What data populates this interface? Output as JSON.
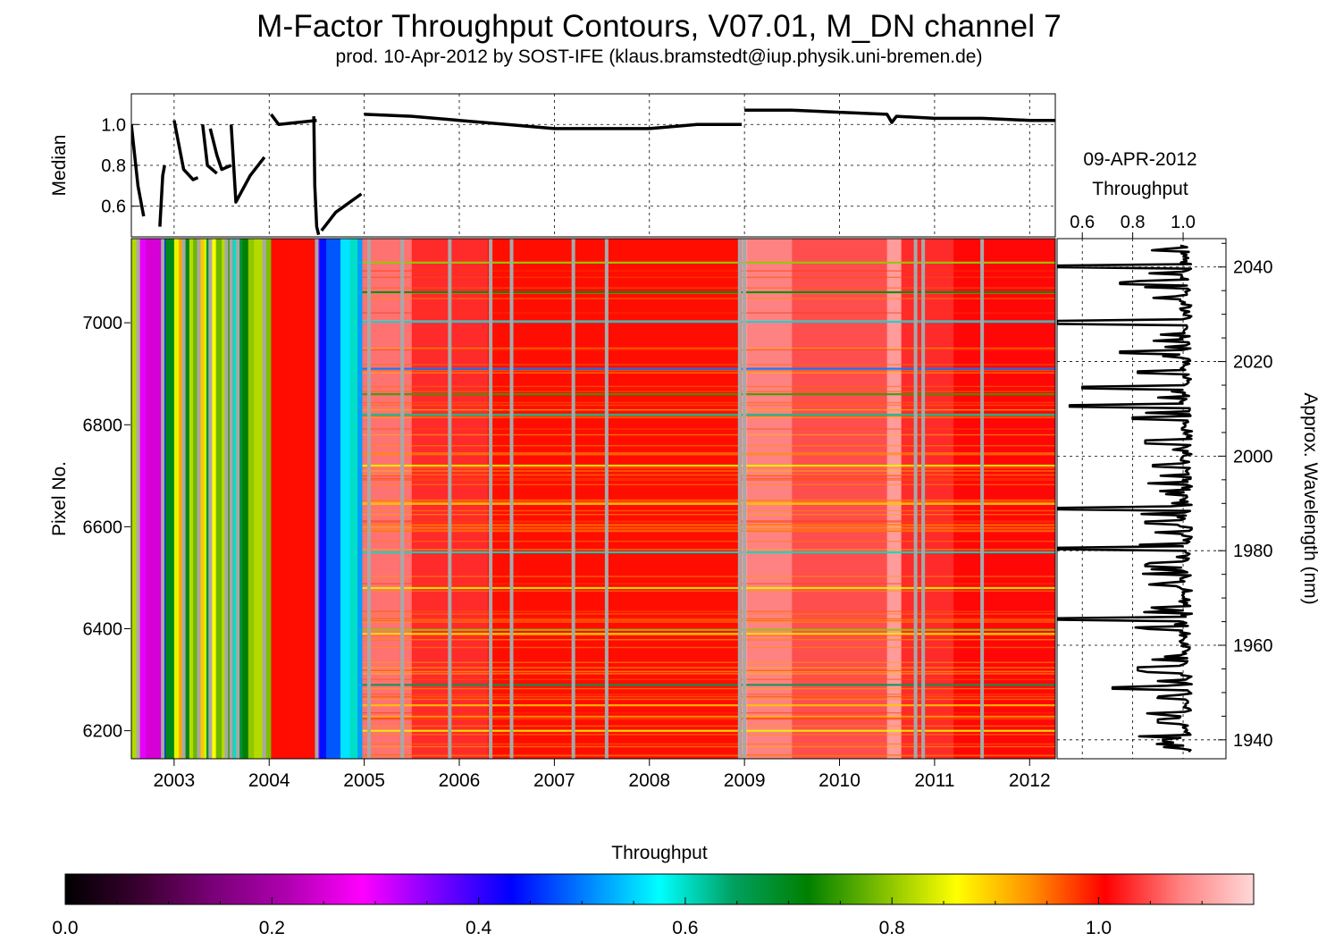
{
  "title": "M-Factor Throughput Contours, V07.01, M_DN channel 7",
  "subtitle": "prod. 10-Apr-2012 by SOST-IFE (klaus.bramstedt@iup.physik.uni-bremen.de)",
  "colors": {
    "background": "#ffffff",
    "median_line": "#000000",
    "gap_gray": "#a8a8a8",
    "colorbar_stops": [
      "#000000",
      "#3a0030",
      "#7a0078",
      "#b000b0",
      "#ff00ff",
      "#7a00ff",
      "#0000ff",
      "#0080ff",
      "#00ffff",
      "#00a060",
      "#008000",
      "#80c000",
      "#ffff00",
      "#ff9000",
      "#ff0000",
      "#ff8080",
      "#ffd8d8"
    ]
  },
  "chart_data": [
    {
      "type": "line",
      "name": "median-panel",
      "ylabel": "Median",
      "xlim": [
        2002.55,
        2012.27
      ],
      "ylim": [
        0.45,
        1.15
      ],
      "yticks": [
        0.6,
        0.8,
        1.0
      ],
      "ytick_labels": [
        "0.6",
        "0.8",
        "1.0"
      ],
      "grid": true,
      "series": [
        {
          "x": [
            2005.0,
            2005.5,
            2006.0,
            2006.5,
            2007.0,
            2007.5,
            2008.0,
            2008.5,
            2008.97
          ],
          "y": [
            1.05,
            1.04,
            1.02,
            1.0,
            0.98,
            0.98,
            0.98,
            1.0,
            1.0
          ]
        },
        {
          "x": [
            2009.0,
            2009.5,
            2010.0,
            2010.5,
            2010.55,
            2010.6,
            2011.0,
            2011.5,
            2012.0,
            2012.27
          ],
          "y": [
            1.07,
            1.07,
            1.06,
            1.05,
            1.01,
            1.04,
            1.03,
            1.03,
            1.02,
            1.02
          ]
        },
        {
          "x": [
            2004.02,
            2004.1,
            2004.3,
            2004.5
          ],
          "y": [
            1.05,
            1.0,
            1.01,
            1.02
          ]
        },
        {
          "x": [
            2004.55,
            2004.7,
            2004.85,
            2004.97
          ],
          "y": [
            0.48,
            0.57,
            0.62,
            0.66
          ]
        },
        {
          "x": [
            2003.6,
            2003.65,
            2003.8,
            2003.95
          ],
          "y": [
            1.0,
            0.62,
            0.75,
            0.84
          ]
        },
        {
          "x": [
            2003.0,
            2003.05,
            2003.1,
            2003.2,
            2003.25
          ],
          "y": [
            1.02,
            0.9,
            0.78,
            0.73,
            0.74
          ]
        },
        {
          "x": [
            2003.3,
            2003.35,
            2003.45
          ],
          "y": [
            1.0,
            0.8,
            0.76
          ]
        },
        {
          "x": [
            2003.38,
            2003.45,
            2003.5,
            2003.6
          ],
          "y": [
            0.98,
            0.85,
            0.78,
            0.8
          ]
        },
        {
          "x": [
            2002.55,
            2002.62,
            2002.68
          ],
          "y": [
            1.0,
            0.7,
            0.55
          ]
        },
        {
          "x": [
            2002.85,
            2002.88,
            2002.9
          ],
          "y": [
            0.5,
            0.75,
            0.8
          ]
        },
        {
          "x": [
            2004.47,
            2004.48,
            2004.5,
            2004.52
          ],
          "y": [
            1.04,
            0.7,
            0.5,
            0.46
          ]
        }
      ]
    },
    {
      "type": "heatmap",
      "name": "throughput-contours",
      "xlabel": "",
      "ylabel": "Pixel No.",
      "xlim": [
        2002.55,
        2012.27
      ],
      "ylim": [
        6145,
        7165
      ],
      "xticks": [
        2003,
        2004,
        2005,
        2006,
        2007,
        2008,
        2009,
        2010,
        2011,
        2012
      ],
      "xtick_labels": [
        "2003",
        "2004",
        "2005",
        "2006",
        "2007",
        "2008",
        "2009",
        "2010",
        "2011",
        "2012"
      ],
      "yticks": [
        6200,
        6400,
        6600,
        6800,
        7000
      ],
      "ytick_labels": [
        "6200",
        "6400",
        "6600",
        "6800",
        "7000"
      ],
      "bands": [
        {
          "x0": 2002.55,
          "x1": 2002.62,
          "value": 0.82
        },
        {
          "x0": 2002.62,
          "x1": 2002.64,
          "value": 0.9
        },
        {
          "x0": 2002.64,
          "x1": 2002.7,
          "value": 0.3
        },
        {
          "x0": 2002.7,
          "x1": 2002.87,
          "value": 0.25
        },
        {
          "x0": 2002.87,
          "x1": 2002.91,
          "value": 0.45
        },
        {
          "x0": 2002.91,
          "x1": 2003.0,
          "value": 0.7
        },
        {
          "x0": 2003.0,
          "x1": 2003.05,
          "value": 0.85
        },
        {
          "x0": 2003.05,
          "x1": 2003.09,
          "value": 0.92
        },
        {
          "x0": 2003.09,
          "x1": 2003.12,
          "value": 0.8
        },
        {
          "x0": 2003.12,
          "x1": 2003.16,
          "value": 0.7
        },
        {
          "x0": 2003.16,
          "x1": 2003.2,
          "value": 0.82
        },
        {
          "x0": 2003.2,
          "x1": 2003.27,
          "value": 0.78
        },
        {
          "x0": 2003.27,
          "x1": 2003.31,
          "value": 0.9
        },
        {
          "x0": 2003.31,
          "x1": 2003.34,
          "value": 0.84
        },
        {
          "x0": 2003.34,
          "x1": 2003.39,
          "value": 0.68
        },
        {
          "x0": 2003.39,
          "x1": 2003.44,
          "value": 0.86
        },
        {
          "x0": 2003.44,
          "x1": 2003.5,
          "value": 0.78
        },
        {
          "x0": 2003.5,
          "x1": 2003.55,
          "value": 0.82
        },
        {
          "x0": 2003.55,
          "x1": 2003.62,
          "value": 0.74
        },
        {
          "x0": 2003.62,
          "x1": 2003.66,
          "value": 0.6
        },
        {
          "x0": 2003.66,
          "x1": 2003.72,
          "value": 0.68
        },
        {
          "x0": 2003.72,
          "x1": 2003.78,
          "value": 0.72
        },
        {
          "x0": 2003.78,
          "x1": 2003.84,
          "value": 0.8
        },
        {
          "x0": 2003.84,
          "x1": 2003.93,
          "value": 0.82
        },
        {
          "x0": 2003.93,
          "x1": 2004.02,
          "value": 0.79
        },
        {
          "x0": 2004.02,
          "x1": 2004.5,
          "value": 1.0
        },
        {
          "x0": 2004.5,
          "x1": 2004.53,
          "value": 0.35
        },
        {
          "x0": 2004.53,
          "x1": 2004.6,
          "value": 0.44
        },
        {
          "x0": 2004.6,
          "x1": 2004.75,
          "value": 0.48
        },
        {
          "x0": 2004.75,
          "x1": 2004.85,
          "value": 0.56
        },
        {
          "x0": 2004.85,
          "x1": 2004.93,
          "value": 0.6
        },
        {
          "x0": 2004.93,
          "x1": 2004.98,
          "value": 0.52
        },
        {
          "x0": 2004.98,
          "x1": 2005.5,
          "value": 1.07
        },
        {
          "x0": 2005.5,
          "x1": 2006.3,
          "value": 1.03
        },
        {
          "x0": 2006.3,
          "x1": 2008.97,
          "value": 1.0
        },
        {
          "x0": 2008.97,
          "x1": 2009.03,
          "value": 1.1
        },
        {
          "x0": 2009.03,
          "x1": 2009.5,
          "value": 1.08
        },
        {
          "x0": 2009.5,
          "x1": 2010.5,
          "value": 1.05
        },
        {
          "x0": 2010.5,
          "x1": 2010.65,
          "value": 1.1
        },
        {
          "x0": 2010.65,
          "x1": 2011.2,
          "value": 1.03
        },
        {
          "x0": 2011.2,
          "x1": 2012.27,
          "value": 1.01
        }
      ],
      "gaps": [
        2002.62,
        2002.88,
        2003.1,
        2003.26,
        2003.38,
        2003.55,
        2003.6,
        2003.67,
        2003.95,
        2004.5,
        2005.05,
        2005.4,
        2005.9,
        2006.33,
        2006.55,
        2007.2,
        2007.55,
        2008.95,
        2009.0,
        2010.8,
        2010.88,
        2011.5
      ],
      "rows": [
        {
          "pixel": 7118,
          "value": 0.8
        },
        {
          "pixel": 7060,
          "value": 0.7
        },
        {
          "pixel": 7002,
          "value": 0.55
        },
        {
          "pixel": 6910,
          "value": 0.5
        },
        {
          "pixel": 6860,
          "value": 0.75
        },
        {
          "pixel": 6820,
          "value": 0.62
        },
        {
          "pixel": 6720,
          "value": 0.85
        },
        {
          "pixel": 6645,
          "value": 0.9
        },
        {
          "pixel": 6550,
          "value": 0.6
        },
        {
          "pixel": 6480,
          "value": 0.85
        },
        {
          "pixel": 6398,
          "value": 0.8
        },
        {
          "pixel": 6390,
          "value": 0.88
        },
        {
          "pixel": 6290,
          "value": 0.66
        },
        {
          "pixel": 6250,
          "value": 0.9
        },
        {
          "pixel": 6200,
          "value": 0.85
        }
      ]
    },
    {
      "type": "line",
      "name": "throughput-profile",
      "title": "09-APR-2012 Throughput",
      "title_lines": [
        "09-APR-2012",
        "Throughput"
      ],
      "xlabel": "",
      "ylabel": "Approx. Wavelength (nm)",
      "xlim": [
        0.5,
        1.17
      ],
      "xticks": [
        0.6,
        0.8,
        1.0
      ],
      "xtick_labels": [
        "0.6",
        "0.8",
        "1.0"
      ],
      "wavelength_lim": [
        1936,
        2046
      ],
      "wavelength_ticks": [
        1940,
        1960,
        1980,
        2000,
        2020,
        2040
      ],
      "wavelength_tick_labels": [
        "1940",
        "1960",
        "1980",
        "2000",
        "2020",
        "2040"
      ],
      "grid": true,
      "mean_throughput": 1.01,
      "spikes": [
        {
          "wavelength": 2040.2,
          "value": 0.5
        },
        {
          "wavelength": 2036.5,
          "value": 0.75
        },
        {
          "wavelength": 2028.3,
          "value": 0.5
        },
        {
          "wavelength": 2022.0,
          "value": 0.75
        },
        {
          "wavelength": 2017.8,
          "value": 0.82
        },
        {
          "wavelength": 2014.5,
          "value": 0.6
        },
        {
          "wavelength": 2010.5,
          "value": 0.55
        },
        {
          "wavelength": 2008.0,
          "value": 0.8
        },
        {
          "wavelength": 2003.0,
          "value": 0.85
        },
        {
          "wavelength": 1998.0,
          "value": 0.88
        },
        {
          "wavelength": 1989.0,
          "value": 0.5
        },
        {
          "wavelength": 1986.0,
          "value": 0.85
        },
        {
          "wavelength": 1980.5,
          "value": 0.5
        },
        {
          "wavelength": 1977.0,
          "value": 0.85
        },
        {
          "wavelength": 1965.5,
          "value": 0.5
        },
        {
          "wavelength": 1955.0,
          "value": 0.82
        },
        {
          "wavelength": 1951.0,
          "value": 0.72
        },
        {
          "wavelength": 1944.0,
          "value": 0.9
        },
        {
          "wavelength": 1940.0,
          "value": 0.92
        }
      ]
    },
    {
      "type": "colorbar",
      "name": "throughput-colorbar",
      "label": "Throughput",
      "range": [
        0.0,
        1.15
      ],
      "ticks": [
        0.0,
        0.2,
        0.4,
        0.6,
        0.8,
        1.0
      ],
      "tick_labels": [
        "0.0",
        "0.2",
        "0.4",
        "0.6",
        "0.8",
        "1.0"
      ]
    }
  ]
}
